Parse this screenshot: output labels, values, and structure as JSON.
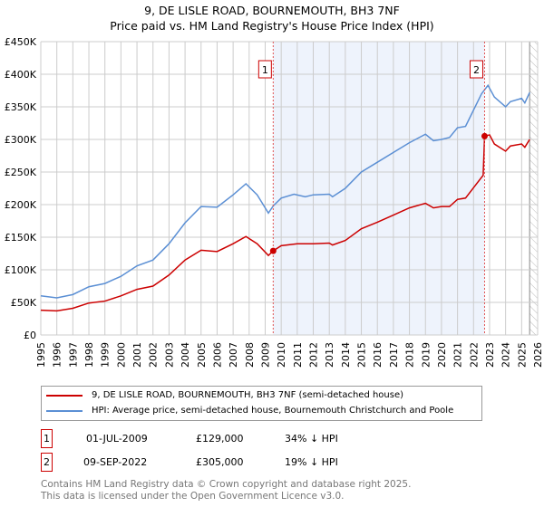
{
  "title": "9, DE LISLE ROAD, BOURNEMOUTH, BH3 7NF",
  "subtitle": "Price paid vs. HM Land Registry's House Price Index (HPI)",
  "chart_data": {
    "type": "line",
    "title": "9, DE LISLE ROAD, BOURNEMOUTH, BH3 7NF",
    "subtitle": "Price paid vs. HM Land Registry's House Price Index (HPI)",
    "xlim": [
      1995,
      2026
    ],
    "ylim": [
      0,
      450000
    ],
    "x_ticks": [
      "1995",
      "1996",
      "1997",
      "1998",
      "1999",
      "2000",
      "2001",
      "2002",
      "2003",
      "2004",
      "2005",
      "2006",
      "2007",
      "2008",
      "2009",
      "2010",
      "2011",
      "2012",
      "2013",
      "2014",
      "2015",
      "2016",
      "2017",
      "2018",
      "2019",
      "2020",
      "2021",
      "2022",
      "2023",
      "2024",
      "2025",
      "2026"
    ],
    "y_ticks": [
      "£0",
      "£50K",
      "£100K",
      "£150K",
      "£200K",
      "£250K",
      "£300K",
      "£350K",
      "£400K",
      "£450K"
    ],
    "grid": true,
    "series": [
      {
        "name": "9, DE LISLE ROAD, BOURNEMOUTH, BH3 7NF (semi-detached house)",
        "color": "#cc0000",
        "x": [
          1995,
          1996,
          1997,
          1998,
          1999,
          2000,
          2001,
          2002,
          2003,
          2004,
          2005,
          2006,
          2007,
          2007.8,
          2008.5,
          2009.2,
          2009.5,
          2010,
          2011,
          2012,
          2013,
          2013.2,
          2014,
          2015,
          2016,
          2017,
          2018,
          2019,
          2019.5,
          2020,
          2020.5,
          2021,
          2021.5,
          2022,
          2022.6,
          2022.69,
          2023,
          2023.3,
          2024,
          2024.3,
          2025,
          2025.2,
          2025.5
        ],
        "y": [
          38000,
          37000,
          41000,
          49000,
          52000,
          60000,
          70000,
          75000,
          92000,
          115000,
          130000,
          128000,
          140000,
          151000,
          140000,
          122000,
          129000,
          137000,
          140000,
          140000,
          141000,
          138000,
          145000,
          163000,
          173000,
          184000,
          195000,
          202000,
          195000,
          197000,
          197000,
          208000,
          210000,
          226000,
          245000,
          305000,
          307000,
          293000,
          282000,
          290000,
          293000,
          288000,
          300000
        ]
      },
      {
        "name": "HPI: Average price, semi-detached house, Bournemouth Christchurch and Poole",
        "color": "#5b8fd4",
        "x": [
          1995,
          1996,
          1997,
          1998,
          1999,
          2000,
          2001,
          2002,
          2003,
          2004,
          2005,
          2006,
          2007,
          2007.8,
          2008.5,
          2009.2,
          2009.5,
          2010,
          2010.8,
          2011.5,
          2012,
          2013,
          2013.2,
          2014,
          2015,
          2016,
          2017,
          2018,
          2019,
          2019.5,
          2020,
          2020.5,
          2021,
          2021.5,
          2022,
          2022.5,
          2022.9,
          2023.3,
          2024,
          2024.3,
          2025,
          2025.2,
          2025.5
        ],
        "y": [
          60000,
          57000,
          62000,
          74000,
          79000,
          90000,
          106000,
          115000,
          140000,
          172000,
          197000,
          196000,
          215000,
          232000,
          215000,
          187000,
          198000,
          210000,
          216000,
          212000,
          215000,
          216000,
          212000,
          225000,
          250000,
          265000,
          280000,
          295000,
          308000,
          298000,
          300000,
          303000,
          318000,
          320000,
          345000,
          370000,
          383000,
          365000,
          350000,
          358000,
          363000,
          356000,
          372000
        ]
      }
    ],
    "sales": [
      {
        "label": "1",
        "x": 2009.5,
        "y": 129000
      },
      {
        "label": "2",
        "x": 2022.69,
        "y": 305000
      }
    ],
    "shaded_range": [
      2009.5,
      2022.69
    ],
    "forecast_hatch_from": 2025.5,
    "legend_position": "bottom"
  },
  "legend": {
    "red": "9, DE LISLE ROAD, BOURNEMOUTH, BH3 7NF (semi-detached house)",
    "blue": "HPI: Average price, semi-detached house, Bournemouth Christchurch and Poole"
  },
  "transactions": [
    {
      "num": "1",
      "date": "01-JUL-2009",
      "price": "£129,000",
      "diff": "34% ↓ HPI"
    },
    {
      "num": "2",
      "date": "09-SEP-2022",
      "price": "£305,000",
      "diff": "19% ↓ HPI"
    }
  ],
  "footer": {
    "line1": "Contains HM Land Registry data © Crown copyright and database right 2025.",
    "line2": "This data is licensed under the Open Government Licence v3.0."
  }
}
